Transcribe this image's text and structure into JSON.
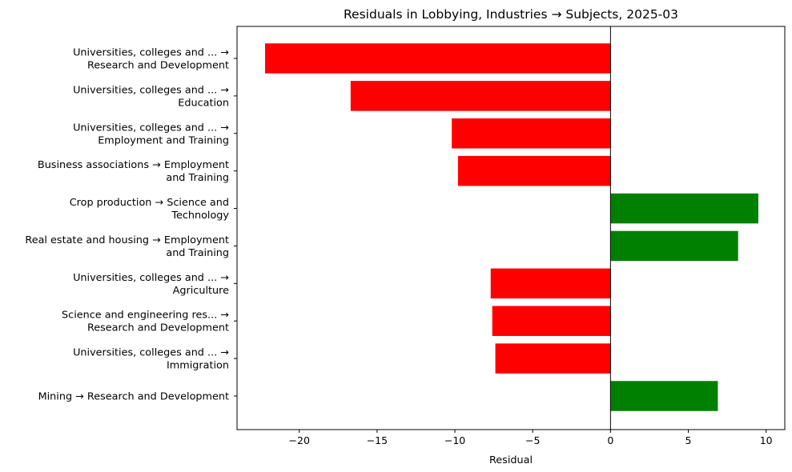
{
  "chart_data": {
    "type": "bar",
    "orientation": "horizontal",
    "title": "Residuals in Lobbying, Industries → Subjects, 2025-03",
    "xlabel": "Residual",
    "ylabel": "",
    "xlim": [
      -24.0,
      11.2
    ],
    "xticks": [
      -20,
      -15,
      -10,
      -5,
      0,
      5,
      10
    ],
    "xtick_labels": [
      "−20",
      "−15",
      "−10",
      "−5",
      "0",
      "5",
      "10"
    ],
    "categories": [
      [
        "Universities, colleges and ... →",
        "Research and Development"
      ],
      [
        "Universities, colleges and ... →",
        "Education"
      ],
      [
        "Universities, colleges and ... →",
        "Employment and Training"
      ],
      [
        "Business associations → Employment",
        "and Training"
      ],
      [
        "Crop production → Science and",
        "Technology"
      ],
      [
        "Real estate and housing → Employment",
        "and Training"
      ],
      [
        "Universities, colleges and ... →",
        "Agriculture"
      ],
      [
        "Science and engineering res... →",
        "Research and Development"
      ],
      [
        "Universities, colleges and ... →",
        "Immigration"
      ],
      [
        "Mining → Research and Development"
      ]
    ],
    "values": [
      -22.2,
      -16.7,
      -10.2,
      -9.8,
      9.5,
      8.2,
      -7.7,
      -7.6,
      -7.4,
      6.9
    ],
    "colors": {
      "negative": "#ff0000",
      "positive": "#008000"
    },
    "grid": false,
    "legend": "none"
  }
}
